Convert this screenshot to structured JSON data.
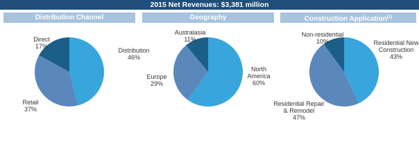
{
  "header": {
    "title": "2015 Net Revenues: $3,381 million"
  },
  "chart_data": [
    {
      "type": "pie",
      "title": "Distribution Channel",
      "categories": [
        "Distribution",
        "Retail",
        "Direct"
      ],
      "values": [
        46,
        37,
        17
      ],
      "value_labels": [
        "46%",
        "37%",
        "17%"
      ],
      "colors": [
        "#38a6dc",
        "#5a88bc",
        "#1b5f88"
      ]
    },
    {
      "type": "pie",
      "title": "Geography",
      "categories": [
        "North America",
        "Europe",
        "Australasia"
      ],
      "values": [
        60,
        29,
        11
      ],
      "value_labels": [
        "60%",
        "29%",
        "11%"
      ],
      "colors": [
        "#38a6dc",
        "#5a88bc",
        "#1b5f88"
      ]
    },
    {
      "type": "pie",
      "title": "Construction Application",
      "title_note": "(1)",
      "categories": [
        "Residential New Construction",
        "Residential Repair & Remodel",
        "Non-residential"
      ],
      "values": [
        43,
        47,
        10
      ],
      "value_labels": [
        "43%",
        "47%",
        "10%"
      ],
      "colors": [
        "#38a6dc",
        "#5a88bc",
        "#1b5f88"
      ]
    }
  ]
}
